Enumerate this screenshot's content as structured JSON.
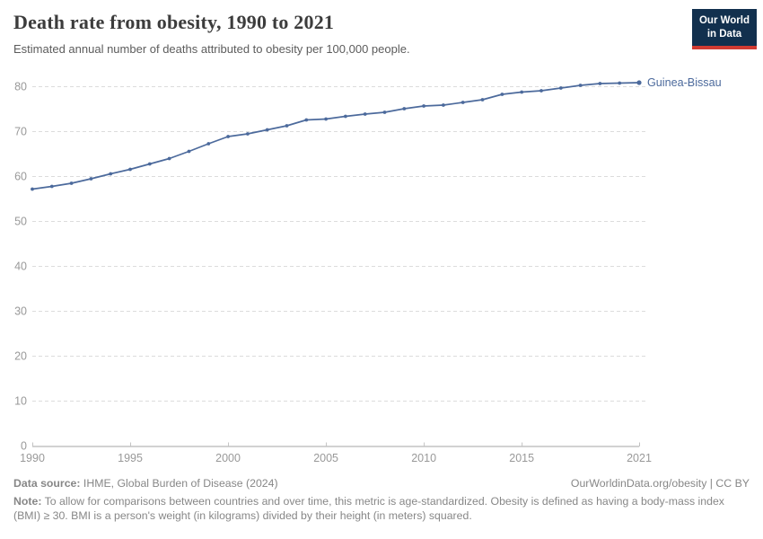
{
  "header": {
    "title": "Death rate from obesity, 1990 to 2021",
    "subtitle": "Estimated annual number of deaths attributed to obesity per 100,000 people.",
    "logo": {
      "line1": "Our World",
      "line2": "in Data"
    }
  },
  "chart_data": {
    "type": "line",
    "title": "Death rate from obesity, 1990 to 2021",
    "x": [
      1990,
      1991,
      1992,
      1993,
      1994,
      1995,
      1996,
      1997,
      1998,
      1999,
      2000,
      2001,
      2002,
      2003,
      2004,
      2005,
      2006,
      2007,
      2008,
      2009,
      2010,
      2011,
      2012,
      2013,
      2014,
      2015,
      2016,
      2017,
      2018,
      2019,
      2020,
      2021
    ],
    "series": [
      {
        "name": "Guinea-Bissau",
        "color": "#4c6a9c",
        "values": [
          57.1,
          57.7,
          58.4,
          59.4,
          60.5,
          61.5,
          62.7,
          63.9,
          65.5,
          67.2,
          68.8,
          69.4,
          70.3,
          71.2,
          72.5,
          72.7,
          73.3,
          73.8,
          74.2,
          75.0,
          75.6,
          75.8,
          76.4,
          77.0,
          78.2,
          78.7,
          79.0,
          79.6,
          80.2,
          80.6,
          80.7,
          80.8
        ]
      }
    ],
    "xlabel": "",
    "ylabel": "",
    "x_ticks": [
      1990,
      1995,
      2000,
      2005,
      2010,
      2015,
      2021
    ],
    "y_ticks": [
      0,
      10,
      20,
      30,
      40,
      50,
      60,
      70,
      80
    ],
    "xlim": [
      1990,
      2021
    ],
    "ylim": [
      0,
      80
    ],
    "grid": "horizontal-dashed",
    "legend_position": "line-end-label"
  },
  "colors": {
    "line": "#4c6a9c",
    "grid": "#dcdcdc",
    "axis": "#a6a6a6",
    "tick": "#c2c2c2",
    "tick_label": "#999999",
    "title": "#3c3c3c",
    "subtitle": "#5c5c5c",
    "footer": "#878787",
    "logo_bg": "#12304e",
    "logo_accent": "#d13b32"
  },
  "footer": {
    "datasource_label": "Data source:",
    "datasource_text": " IHME, Global Burden of Disease (2024)",
    "attribution": "OurWorldinData.org/obesity | CC BY",
    "note_label": "Note:",
    "note_text": " To allow for comparisons between countries and over time, this metric is age-standardized. Obesity is defined as having a body-mass index (BMI) ≥ 30. BMI is a person's weight (in kilograms) divided by their height (in meters) squared."
  }
}
